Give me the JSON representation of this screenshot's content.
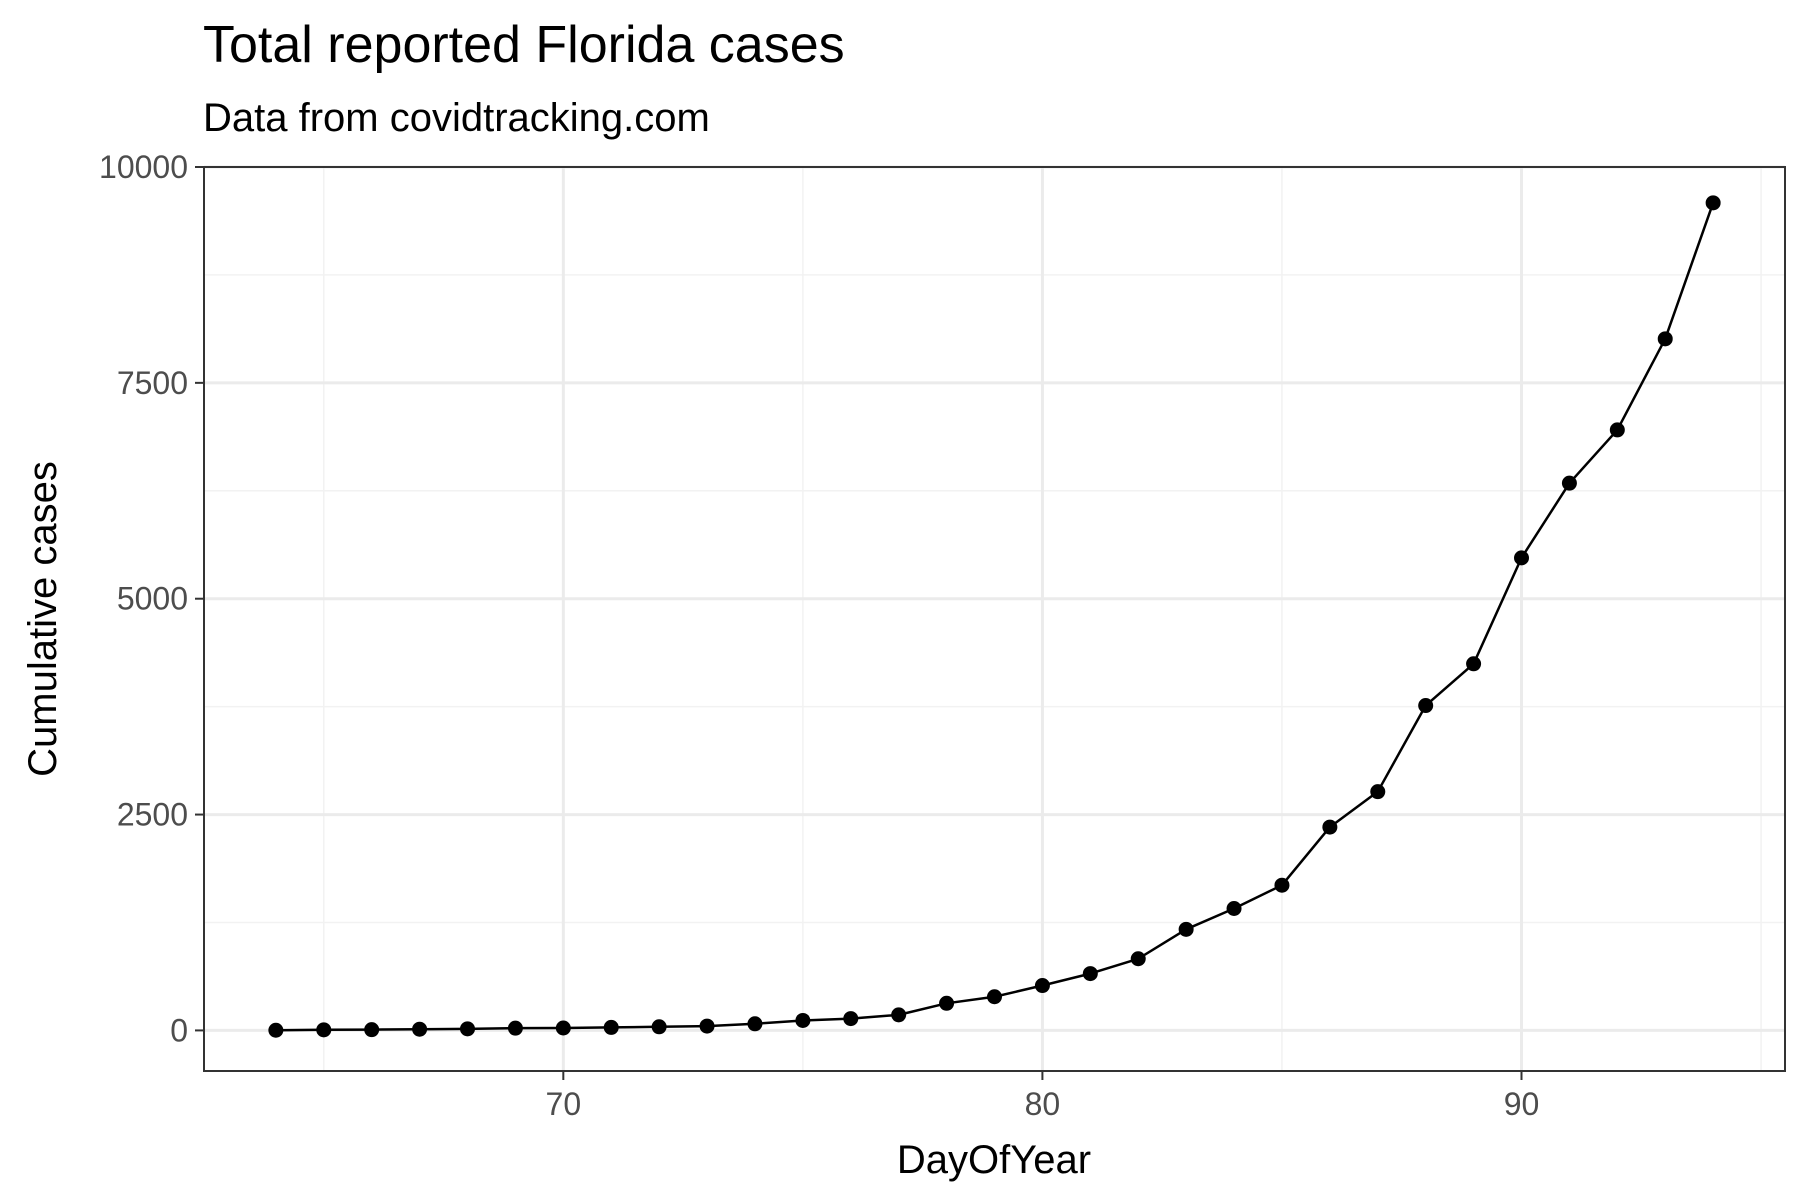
{
  "chart_data": {
    "type": "line",
    "title": "Total reported Florida cases",
    "subtitle": "Data from covidtracking.com",
    "xlabel": "DayOfYear",
    "ylabel": "Cumulative cases",
    "xlim": [
      62.5,
      95.5
    ],
    "ylim": [
      -470,
      10000
    ],
    "x_ticks": [
      70,
      80,
      90
    ],
    "x_tick_labels": [
      "70",
      "80",
      "90"
    ],
    "y_ticks": [
      0,
      2500,
      5000,
      7500,
      10000
    ],
    "y_tick_labels": [
      "0",
      "2500",
      "5000",
      "7500",
      "10000"
    ],
    "grid": true,
    "legend": "none",
    "series": [
      {
        "x": [
          64,
          65,
          66,
          67,
          68,
          69,
          70,
          71,
          72,
          73,
          74,
          75,
          76,
          77,
          78,
          79,
          80,
          81,
          82,
          83,
          84,
          85,
          86,
          87,
          88,
          89,
          90,
          91,
          92,
          93,
          94
        ],
        "y": [
          2,
          7,
          9,
          14,
          18,
          26,
          28,
          35,
          42,
          50,
          77,
          115,
          137,
          180,
          314,
          390,
          520,
          658,
          830,
          1171,
          1412,
          1682,
          2355,
          2765,
          3763,
          4246,
          5473,
          6338,
          6955,
          8010,
          9585
        ]
      }
    ],
    "colors": {
      "line": "#000000",
      "point": "#000000",
      "grid_major": "#ebebeb",
      "grid_minor": "#f2f2f2",
      "panel_border": "#333333",
      "tick_text": "#4d4d4d"
    }
  }
}
